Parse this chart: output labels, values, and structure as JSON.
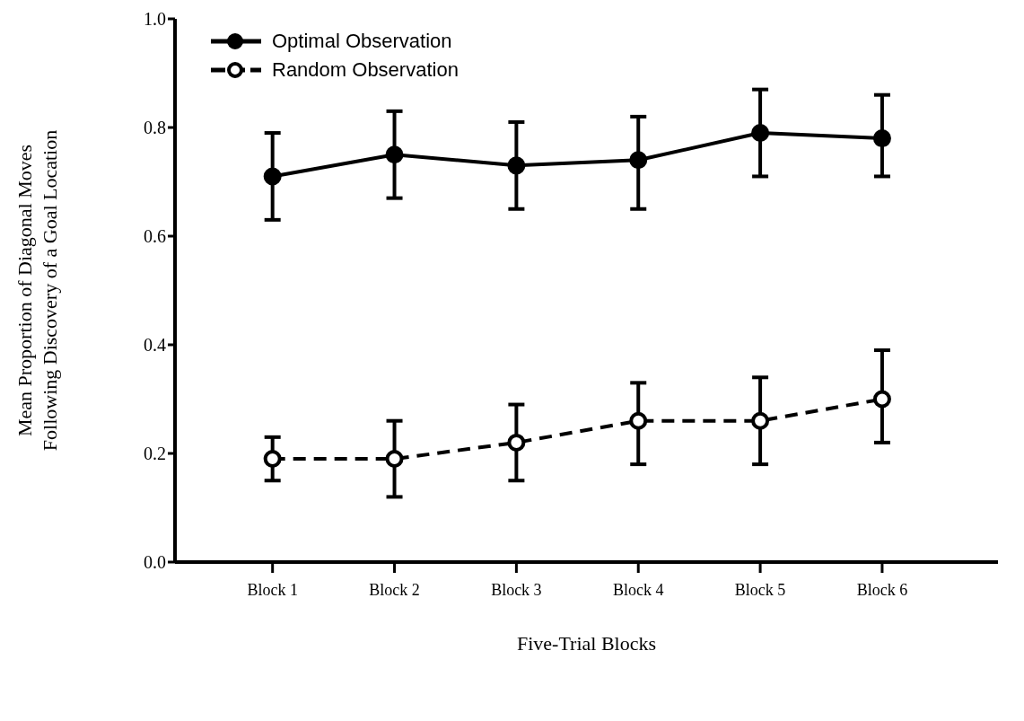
{
  "chart_data": {
    "type": "line",
    "xlabel": "Five-Trial Blocks",
    "ylabel": "Mean Proportion of Diagonal Moves\nFollowing Discovery of a Goal Location",
    "categories": [
      "Block 1",
      "Block 2",
      "Block 3",
      "Block 4",
      "Block 5",
      "Block 6"
    ],
    "series": [
      {
        "name": "Optimal Observation",
        "color": "#000000",
        "line_style": "solid",
        "values": [
          0.71,
          0.75,
          0.73,
          0.74,
          0.79,
          0.78
        ],
        "errors": [
          [
            0.63,
            0.79
          ],
          [
            0.67,
            0.83
          ],
          [
            0.65,
            0.81
          ],
          [
            0.65,
            0.82
          ],
          [
            0.71,
            0.87
          ],
          [
            0.71,
            0.86
          ]
        ]
      },
      {
        "name": "Random Observation",
        "color": "#000000",
        "line_style": "dashed",
        "values": [
          0.19,
          0.19,
          0.22,
          0.26,
          0.26,
          0.3
        ],
        "errors": [
          [
            0.15,
            0.23
          ],
          [
            0.12,
            0.26
          ],
          [
            0.15,
            0.29
          ],
          [
            0.18,
            0.33
          ],
          [
            0.18,
            0.34
          ],
          [
            0.22,
            0.39
          ]
        ]
      }
    ],
    "ylim": [
      0,
      1
    ],
    "yticks": [
      {
        "value": 0,
        "label": "0.0"
      },
      0.2,
      0.4,
      0.6,
      0.8,
      {
        "value": 1,
        "label": "1.0"
      }
    ],
    "marker": "circle",
    "legend": "top left",
    "grid": false
  }
}
